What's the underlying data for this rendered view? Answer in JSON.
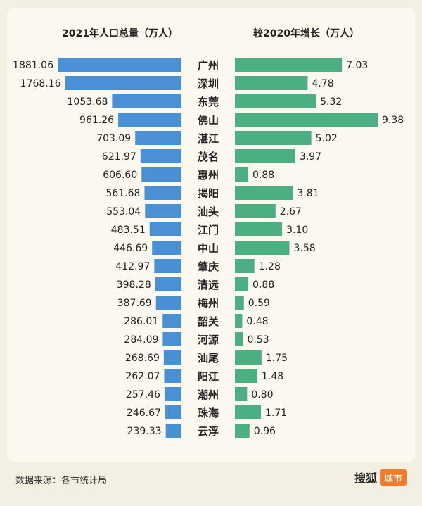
{
  "chart_data": {
    "type": "bar",
    "left_title": "2021年人口总量（万人）",
    "right_title": "较2020年增长（万人）",
    "categories": [
      "广州",
      "深圳",
      "东莞",
      "佛山",
      "湛江",
      "茂名",
      "惠州",
      "揭阳",
      "汕头",
      "江门",
      "中山",
      "肇庆",
      "清远",
      "梅州",
      "韶关",
      "河源",
      "汕尾",
      "阳江",
      "潮州",
      "珠海",
      "云浮"
    ],
    "series": [
      {
        "values": [
          1881.06,
          1768.16,
          1053.68,
          961.26,
          703.09,
          621.97,
          606.6,
          561.68,
          553.04,
          483.51,
          446.69,
          412.97,
          398.28,
          387.69,
          286.01,
          284.09,
          268.69,
          262.07,
          257.46,
          246.67,
          239.33
        ],
        "labels": [
          "1881.06",
          "1768.16",
          "1053.68",
          "961.26",
          "703.09",
          "621.97",
          "606.60",
          "561.68",
          "553.04",
          "483.51",
          "446.69",
          "412.97",
          "398.28",
          "387.69",
          "286.01",
          "284.09",
          "268.69",
          "262.07",
          "257.46",
          "246.67",
          "239.33"
        ],
        "color": "#4a90d4"
      },
      {
        "values": [
          7.03,
          4.78,
          5.32,
          9.38,
          5.02,
          3.97,
          0.88,
          3.81,
          2.67,
          3.1,
          3.58,
          1.28,
          0.88,
          0.59,
          0.48,
          0.53,
          1.75,
          1.48,
          0.8,
          1.71,
          0.96
        ],
        "labels": [
          "7.03",
          "4.78",
          "5.32",
          "9.38",
          "5.02",
          "3.97",
          "0.88",
          "3.81",
          "2.67",
          "3.10",
          "3.58",
          "1.28",
          "0.88",
          "0.59",
          "0.48",
          "0.53",
          "1.75",
          "1.48",
          "0.80",
          "1.71",
          "0.96"
        ],
        "color": "#4caf82"
      }
    ]
  },
  "footer": {
    "source": "数据来源：各市统计局",
    "brand_name": "搜狐",
    "brand_badge": "城市"
  }
}
